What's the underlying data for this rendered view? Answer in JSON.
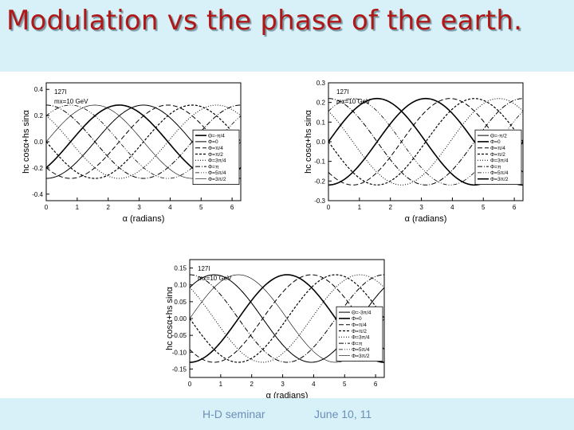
{
  "slide": {
    "title": "Modulation vs the phase of the earth.",
    "footer_left": "H-D seminar",
    "footer_right": "June 10, 11",
    "colors": {
      "title": "#b01818",
      "background": "#d8f1f8",
      "footer_text": "#6a8fb8"
    }
  },
  "chart_data": [
    {
      "type": "line",
      "annotation": [
        "127I",
        "mx=10 GeV"
      ],
      "xlabel": "α (radians)",
      "ylabel": "hc cosα+hs sinα",
      "xlim": [
        0,
        6.28
      ],
      "ylim": [
        -0.45,
        0.45
      ],
      "xticks": [
        0,
        1,
        2,
        3,
        4,
        5,
        6
      ],
      "yticks": [
        -0.4,
        -0.2,
        0.0,
        0.2,
        0.4
      ],
      "ytick_labels": [
        "-0.4",
        "-0.2",
        "0.0",
        "0.2",
        "0.4"
      ],
      "legend_position": "right",
      "amplitude": 0.28,
      "series": [
        {
          "name": "Θ=-π/4",
          "phase": -0.785,
          "style": "solid-thick"
        },
        {
          "name": "Φ=0",
          "phase": 0.0,
          "style": "solid"
        },
        {
          "name": "Φ=π/4",
          "phase": 0.785,
          "style": "dash"
        },
        {
          "name": "Φ=π/2",
          "phase": 1.571,
          "style": "short-dash"
        },
        {
          "name": "Φ=3π/4",
          "phase": 2.356,
          "style": "dot"
        },
        {
          "name": "Φ=π",
          "phase": 3.142,
          "style": "dash-dot"
        },
        {
          "name": "Φ=5π/4",
          "phase": 3.927,
          "style": "dash-dot-dot"
        },
        {
          "name": "Φ=3π/2",
          "phase": 4.712,
          "style": "thin"
        }
      ]
    },
    {
      "type": "line",
      "annotation": [
        "127I",
        "mx=10 GeV"
      ],
      "xlabel": "α (radians)",
      "ylabel": "hc cosα+hs sinα",
      "xlim": [
        0,
        6.28
      ],
      "ylim": [
        -0.3,
        0.3
      ],
      "xticks": [
        0,
        1,
        2,
        3,
        4,
        5,
        6
      ],
      "yticks": [
        -0.3,
        -0.2,
        -0.1,
        0.0,
        0.1,
        0.2,
        0.3
      ],
      "ytick_labels": [
        "-0.3",
        "-0.2",
        "-0.1",
        "0.0",
        "0.1",
        "0.2",
        "0.3"
      ],
      "legend_position": "right",
      "amplitude": 0.22,
      "series": [
        {
          "name": "Θ=-π/2",
          "phase": -1.571,
          "style": "solid"
        },
        {
          "name": "Φ=0",
          "phase": 0.0,
          "style": "solid-thick"
        },
        {
          "name": "Φ=π/4",
          "phase": 0.785,
          "style": "dash"
        },
        {
          "name": "Φ=π/2",
          "phase": 1.571,
          "style": "short-dash"
        },
        {
          "name": "Φ=3π/4",
          "phase": 2.356,
          "style": "dot"
        },
        {
          "name": "Φ=π",
          "phase": 3.142,
          "style": "dash-dot"
        },
        {
          "name": "Φ=5π/4",
          "phase": 3.927,
          "style": "dash-dot-dot"
        },
        {
          "name": "Φ=3π/2",
          "phase": 4.712,
          "style": "solid-thick"
        }
      ]
    },
    {
      "type": "line",
      "annotation": [
        "127I",
        "mx=10 GeV"
      ],
      "xlabel": "α (radians)",
      "ylabel": "hc cosα+hs sinα",
      "xlim": [
        0,
        6.28
      ],
      "ylim": [
        -0.175,
        0.175
      ],
      "xticks": [
        0,
        1,
        2,
        3,
        4,
        5,
        6
      ],
      "yticks": [
        -0.15,
        -0.1,
        -0.05,
        0.0,
        0.05,
        0.1,
        0.15
      ],
      "ytick_labels": [
        "-0.15",
        "-0.10",
        "-0.05",
        "0.00",
        "0.05",
        "0.10",
        "0.15"
      ],
      "legend_position": "right",
      "amplitude": 0.13,
      "series": [
        {
          "name": "Θ=-3π/4",
          "phase": -2.356,
          "style": "solid"
        },
        {
          "name": "Φ=0",
          "phase": 0.0,
          "style": "solid-thick"
        },
        {
          "name": "Φ=π/4",
          "phase": 0.785,
          "style": "dash"
        },
        {
          "name": "Φ=π/2",
          "phase": 1.571,
          "style": "short-dash"
        },
        {
          "name": "Φ=3π/4",
          "phase": 2.356,
          "style": "dot"
        },
        {
          "name": "Φ=π",
          "phase": 3.142,
          "style": "dash-dot"
        },
        {
          "name": "Φ=5π/4",
          "phase": 3.927,
          "style": "dash-dot-dot"
        },
        {
          "name": "Φ=3π/2",
          "phase": 4.712,
          "style": "thin"
        }
      ]
    }
  ]
}
